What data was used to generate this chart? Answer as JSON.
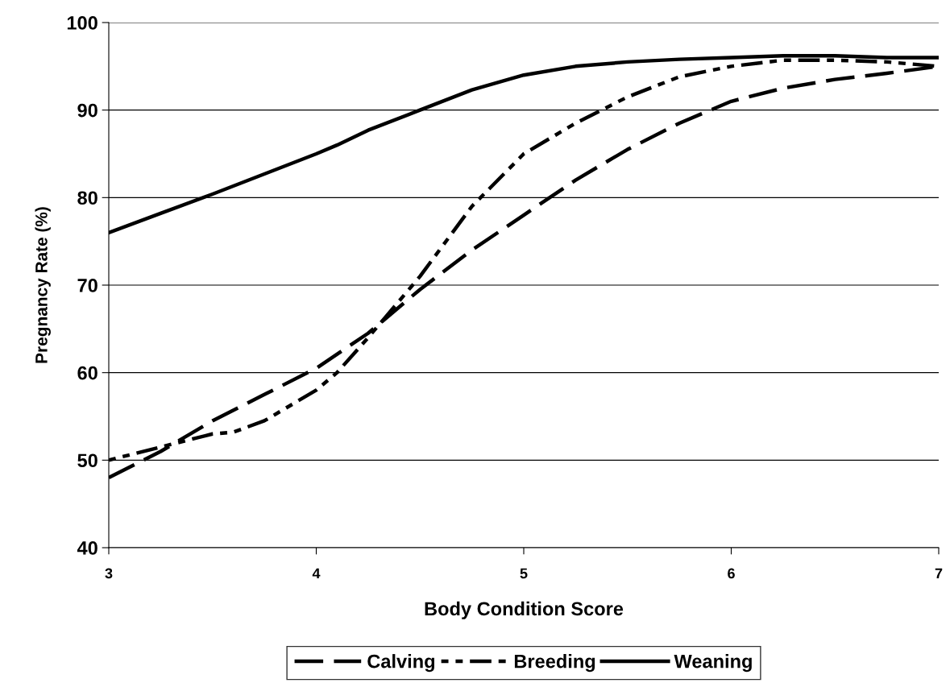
{
  "chart_data": {
    "type": "line",
    "xlabel": "Body Condition Score",
    "ylabel": "Pregnancy Rate (%)",
    "xlim": [
      3,
      7
    ],
    "xticks": [
      3,
      4,
      5,
      6,
      7
    ],
    "ylim": [
      40,
      100
    ],
    "yticks": [
      40,
      50,
      60,
      70,
      80,
      90,
      100
    ],
    "grid": "y",
    "legend": "bottom",
    "marker": "none",
    "series": [
      {
        "name": "Calving",
        "color": "#000000",
        "line_style": "dashed",
        "x": [
          3,
          3.25,
          3.5,
          3.75,
          4,
          4.25,
          4.5,
          4.75,
          5,
          5.25,
          5.5,
          5.75,
          6,
          6.25,
          6.5,
          6.75,
          7
        ],
        "values": [
          48,
          51,
          54.5,
          57.5,
          60.5,
          64.5,
          69.5,
          74,
          78,
          82,
          85.5,
          88.5,
          91,
          92.5,
          93.5,
          94.2,
          95
        ]
      },
      {
        "name": "Breeding",
        "color": "#000000",
        "line_style": "dotted",
        "x": [
          3,
          3.25,
          3.5,
          3.6,
          3.75,
          4,
          4.1,
          4.25,
          4.5,
          4.75,
          5,
          5.25,
          5.5,
          5.75,
          6,
          6.25,
          6.5,
          6.75,
          7
        ],
        "values": [
          50,
          51.5,
          53,
          53.2,
          54.5,
          58,
          60,
          64,
          71,
          79,
          85,
          88.5,
          91.5,
          93.8,
          95,
          95.7,
          95.7,
          95.5,
          95
        ]
      },
      {
        "name": "Weaning",
        "color": "#000000",
        "line_style": "solid",
        "x": [
          3,
          3.25,
          3.5,
          3.75,
          4,
          4.1,
          4.25,
          4.5,
          4.75,
          5,
          5.25,
          5.5,
          5.75,
          6,
          6.25,
          6.5,
          6.75,
          7
        ],
        "values": [
          76,
          78.2,
          80.4,
          82.7,
          85,
          86,
          87.7,
          90,
          92.3,
          94,
          95,
          95.5,
          95.8,
          96,
          96.2,
          96.2,
          96,
          96
        ]
      }
    ]
  }
}
